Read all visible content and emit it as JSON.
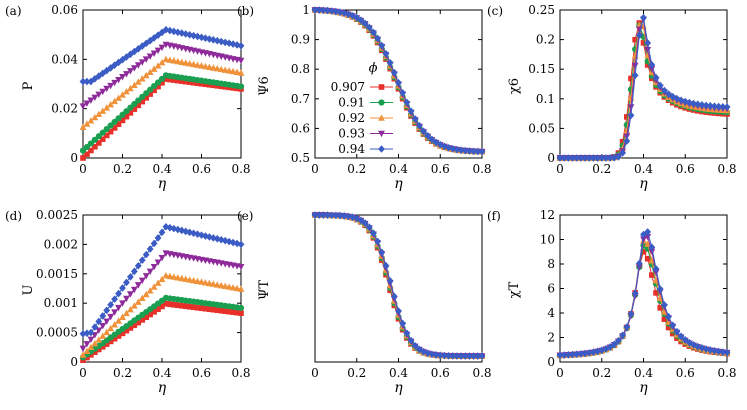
{
  "colors": {
    "0.907": "#e8302a",
    "0.91": "#1a9e50",
    "0.92": "#f0923a",
    "0.93": "#8e2a9a",
    "0.94": "#3b5cc4"
  },
  "legend": {
    "title": "ϕ",
    "entries": [
      "0.907",
      "0.91",
      "0.92",
      "0.93",
      "0.94"
    ],
    "placement": "inside panel (b), left-middle"
  },
  "chart_data": [
    {
      "panel": "(a)",
      "type": "line",
      "ylabel": "P",
      "xlabel": "η",
      "xlim": [
        0,
        0.8
      ],
      "ylim": [
        0,
        0.06
      ],
      "xticks": [
        "0",
        "0.2",
        "0.4",
        "0.6",
        "0.8"
      ],
      "yticks": [
        "0",
        "0.02",
        "0.04",
        "0.06"
      ],
      "series": [
        {
          "name": "0.907",
          "marker": "square",
          "peak_x": 0.42,
          "values": {
            "x": [
              0,
              0.42,
              0.8
            ],
            "y": [
              0.0,
              0.032,
              0.028
            ]
          }
        },
        {
          "name": "0.91",
          "marker": "circle",
          "peak_x": 0.42,
          "values": {
            "x": [
              0,
              0.42,
              0.8
            ],
            "y": [
              0.003,
              0.0335,
              0.029
            ]
          }
        },
        {
          "name": "0.92",
          "marker": "triangle-up",
          "peak_x": 0.42,
          "values": {
            "x": [
              0,
              0.42,
              0.8
            ],
            "y": [
              0.0125,
              0.04,
              0.0345
            ]
          }
        },
        {
          "name": "0.93",
          "marker": "triangle-down",
          "peak_x": 0.42,
          "values": {
            "x": [
              0,
              0.42,
              0.8
            ],
            "y": [
              0.021,
              0.046,
              0.0395
            ]
          }
        },
        {
          "name": "0.94",
          "marker": "diamond",
          "peak_x": 0.42,
          "values": {
            "x": [
              0,
              0.04,
              0.42,
              0.8
            ],
            "y": [
              0.031,
              0.031,
              0.052,
              0.0455
            ]
          }
        }
      ]
    },
    {
      "panel": "(b)",
      "type": "line",
      "ylabel": "Ψ6",
      "xlabel": "η",
      "xlim": [
        0,
        0.8
      ],
      "ylim": [
        0.5,
        1.0
      ],
      "xticks": [
        "0",
        "0.2",
        "0.4",
        "0.6",
        "0.8"
      ],
      "yticks": [
        "0.5",
        "0.6",
        "0.7",
        "0.8",
        "0.9",
        "1"
      ],
      "series": [
        {
          "name": "0.907",
          "marker": "square",
          "x_shift": -0.006
        },
        {
          "name": "0.91",
          "marker": "circle",
          "x_shift": -0.003
        },
        {
          "name": "0.92",
          "marker": "triangle-up",
          "x_shift": 0.0
        },
        {
          "name": "0.93",
          "marker": "triangle-down",
          "x_shift": 0.003
        },
        {
          "name": "0.94",
          "marker": "diamond",
          "x_shift": 0.006
        }
      ]
    },
    {
      "panel": "(c)",
      "type": "line",
      "ylabel": "χ6",
      "xlabel": "η",
      "xlim": [
        0,
        0.8
      ],
      "ylim": [
        0,
        0.25
      ],
      "xticks": [
        "0",
        "0.2",
        "0.4",
        "0.6",
        "0.8"
      ],
      "yticks": [
        "0",
        "0.05",
        "0.1",
        "0.15",
        "0.2",
        "0.25"
      ],
      "series": [
        {
          "name": "0.907",
          "marker": "square",
          "peak_x": 0.38,
          "peak_y": 0.228,
          "tail_y": 0.072
        },
        {
          "name": "0.91",
          "marker": "circle",
          "peak_x": 0.385,
          "peak_y": 0.226,
          "tail_y": 0.075
        },
        {
          "name": "0.92",
          "marker": "triangle-up",
          "peak_x": 0.39,
          "peak_y": 0.232,
          "tail_y": 0.078
        },
        {
          "name": "0.93",
          "marker": "triangle-down",
          "peak_x": 0.395,
          "peak_y": 0.234,
          "tail_y": 0.081
        },
        {
          "name": "0.94",
          "marker": "diamond",
          "peak_x": 0.4,
          "peak_y": 0.237,
          "tail_y": 0.084
        }
      ]
    },
    {
      "panel": "(d)",
      "type": "line",
      "ylabel": "U",
      "xlabel": "η",
      "xlim": [
        0,
        0.8
      ],
      "ylim": [
        0,
        0.0025
      ],
      "xticks": [
        "0",
        "0.2",
        "0.4",
        "0.6",
        "0.8"
      ],
      "yticks": [
        "0",
        "0.0005",
        "0.001",
        "0.0015",
        "0.002",
        "0.0025"
      ],
      "series": [
        {
          "name": "0.907",
          "marker": "square",
          "values": {
            "x": [
              0,
              0.42,
              0.8
            ],
            "y": [
              3e-05,
              0.00099,
              0.00083
            ]
          }
        },
        {
          "name": "0.91",
          "marker": "circle",
          "values": {
            "x": [
              0,
              0.42,
              0.8
            ],
            "y": [
              8e-05,
              0.00109,
              0.00092
            ]
          }
        },
        {
          "name": "0.92",
          "marker": "triangle-up",
          "values": {
            "x": [
              0,
              0.42,
              0.8
            ],
            "y": [
              0.00012,
              0.00147,
              0.00124
            ]
          }
        },
        {
          "name": "0.93",
          "marker": "triangle-down",
          "values": {
            "x": [
              0,
              0.42,
              0.8
            ],
            "y": [
              0.00023,
              0.00185,
              0.00162
            ]
          }
        },
        {
          "name": "0.94",
          "marker": "diamond",
          "values": {
            "x": [
              0,
              0.04,
              0.42,
              0.8
            ],
            "y": [
              0.00048,
              0.0005,
              0.0023,
              0.002
            ]
          }
        }
      ]
    },
    {
      "panel": "(e)",
      "type": "line",
      "ylabel": "ΨT",
      "xlabel": "η",
      "xlim": [
        0,
        0.8
      ],
      "ylim": [
        0,
        1
      ],
      "xticks": [
        "0",
        "0.2",
        "0.4",
        "0.6",
        "0.8"
      ],
      "yticks": [],
      "series": [
        {
          "name": "0.907",
          "marker": "square",
          "x_shift": -0.006
        },
        {
          "name": "0.91",
          "marker": "circle",
          "x_shift": -0.003
        },
        {
          "name": "0.92",
          "marker": "triangle-up",
          "x_shift": 0.0
        },
        {
          "name": "0.93",
          "marker": "triangle-down",
          "x_shift": 0.003
        },
        {
          "name": "0.94",
          "marker": "diamond",
          "x_shift": 0.006
        }
      ]
    },
    {
      "panel": "(f)",
      "type": "line",
      "ylabel": "χT",
      "xlabel": "η",
      "xlim": [
        0,
        0.8
      ],
      "ylim": [
        0,
        12
      ],
      "xticks": [
        "0",
        "0.2",
        "0.4",
        "0.6",
        "0.8"
      ],
      "yticks": [
        "0",
        "2",
        "4",
        "6",
        "8",
        "10",
        "12"
      ],
      "series": [
        {
          "name": "0.907",
          "marker": "square",
          "peak_x": 0.4,
          "peak_y": 9.0
        },
        {
          "name": "0.91",
          "marker": "circle",
          "peak_x": 0.405,
          "peak_y": 9.6
        },
        {
          "name": "0.92",
          "marker": "triangle-up",
          "peak_x": 0.405,
          "peak_y": 10.0
        },
        {
          "name": "0.93",
          "marker": "triangle-down",
          "peak_x": 0.41,
          "peak_y": 10.4
        },
        {
          "name": "0.94",
          "marker": "diamond",
          "peak_x": 0.41,
          "peak_y": 10.8
        }
      ]
    }
  ]
}
